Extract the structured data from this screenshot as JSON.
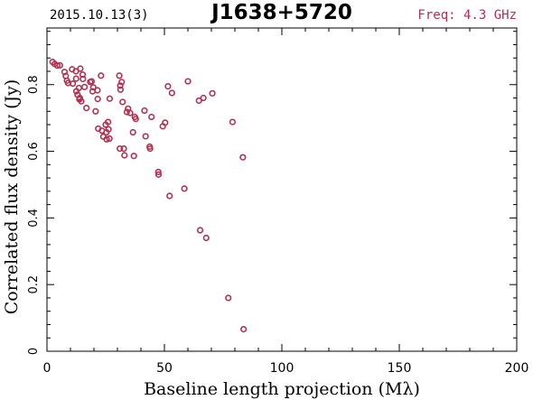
{
  "chart_data": {
    "type": "scatter",
    "date": "2015.10.13(3)",
    "title": "J1638+5720",
    "freq": "Freq: 4.3 GHz",
    "xlabel": "Baseline length projection (Mλ)",
    "ylabel": "Correlated flux density (Jy)",
    "xlim": [
      0,
      200
    ],
    "ylim": [
      0,
      0.97
    ],
    "xticks": [
      0,
      50,
      100,
      150,
      200
    ],
    "yticks": [
      0,
      0.2,
      0.4,
      0.6,
      0.8
    ],
    "xtick_labels": [
      "0",
      "50",
      "100",
      "150",
      "200"
    ],
    "ytick_labels": [
      "0",
      "0.2",
      "0.4",
      "0.6",
      "0.8"
    ],
    "grid": false,
    "marker_color": "#b03050",
    "title_color": "#000000",
    "freq_color": "#b03050",
    "points": [
      [
        2.4,
        0.868
      ],
      [
        3.3,
        0.862
      ],
      [
        4.4,
        0.857
      ],
      [
        5.5,
        0.858
      ],
      [
        7.5,
        0.838
      ],
      [
        8.0,
        0.826
      ],
      [
        8.5,
        0.812
      ],
      [
        9.0,
        0.805
      ],
      [
        10.7,
        0.846
      ],
      [
        11.0,
        0.803
      ],
      [
        12.3,
        0.84
      ],
      [
        12.4,
        0.818
      ],
      [
        12.5,
        0.78
      ],
      [
        13.0,
        0.77
      ],
      [
        13.6,
        0.79
      ],
      [
        13.8,
        0.756
      ],
      [
        14.0,
        0.76
      ],
      [
        14.2,
        0.848
      ],
      [
        14.6,
        0.75
      ],
      [
        15.2,
        0.83
      ],
      [
        15.3,
        0.817
      ],
      [
        16.0,
        0.793
      ],
      [
        16.8,
        0.73
      ],
      [
        18.4,
        0.808
      ],
      [
        19.0,
        0.81
      ],
      [
        19.4,
        0.78
      ],
      [
        19.7,
        0.792
      ],
      [
        20.7,
        0.72
      ],
      [
        21.5,
        0.783
      ],
      [
        21.6,
        0.757
      ],
      [
        21.8,
        0.668
      ],
      [
        23.0,
        0.827
      ],
      [
        23.4,
        0.662
      ],
      [
        24.0,
        0.644
      ],
      [
        25.0,
        0.68
      ],
      [
        25.3,
        0.657
      ],
      [
        25.4,
        0.636
      ],
      [
        26.0,
        0.688
      ],
      [
        26.2,
        0.666
      ],
      [
        26.6,
        0.638
      ],
      [
        26.7,
        0.758
      ],
      [
        30.8,
        0.827
      ],
      [
        31.0,
        0.608
      ],
      [
        31.2,
        0.797
      ],
      [
        31.3,
        0.785
      ],
      [
        31.8,
        0.808
      ],
      [
        32.2,
        0.748
      ],
      [
        32.7,
        0.608
      ],
      [
        33.0,
        0.588
      ],
      [
        34.0,
        0.718
      ],
      [
        34.5,
        0.728
      ],
      [
        35.4,
        0.715
      ],
      [
        36.6,
        0.657
      ],
      [
        37.0,
        0.586
      ],
      [
        37.4,
        0.703
      ],
      [
        37.8,
        0.697
      ],
      [
        41.5,
        0.722
      ],
      [
        42.0,
        0.645
      ],
      [
        43.7,
        0.614
      ],
      [
        43.9,
        0.608
      ],
      [
        44.5,
        0.703
      ],
      [
        47.4,
        0.538
      ],
      [
        47.5,
        0.53
      ],
      [
        49.3,
        0.675
      ],
      [
        50.3,
        0.686
      ],
      [
        51.5,
        0.795
      ],
      [
        52.2,
        0.466
      ],
      [
        53.2,
        0.775
      ],
      [
        58.5,
        0.488
      ],
      [
        60.0,
        0.81
      ],
      [
        64.7,
        0.752
      ],
      [
        65.2,
        0.363
      ],
      [
        66.6,
        0.76
      ],
      [
        67.8,
        0.34
      ],
      [
        70.4,
        0.774
      ],
      [
        77.2,
        0.16
      ],
      [
        79.0,
        0.688
      ],
      [
        83.4,
        0.582
      ],
      [
        83.7,
        0.066
      ]
    ]
  }
}
